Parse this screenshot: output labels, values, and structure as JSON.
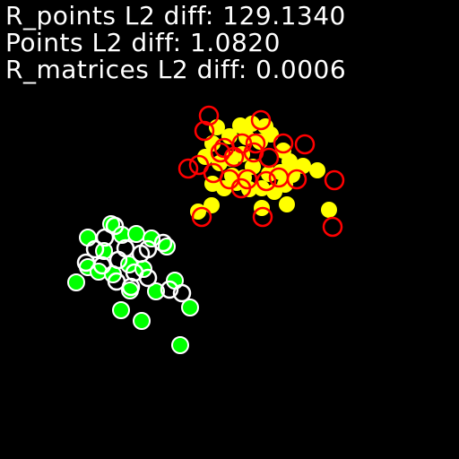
{
  "metrics": {
    "r_points": "R_points L2 diff: 129.1340",
    "points": "Points L2 diff: 1.0820",
    "r_matrices": "R_matrices L2 diff: 0.0006"
  },
  "colors": {
    "background": "#000000",
    "text": "#ffffff",
    "group_a_fill": "#ffff00",
    "group_a_ring": "#ff0000",
    "group_b_fill": "#00ff00",
    "group_b_ring": "#ffffff"
  }
}
